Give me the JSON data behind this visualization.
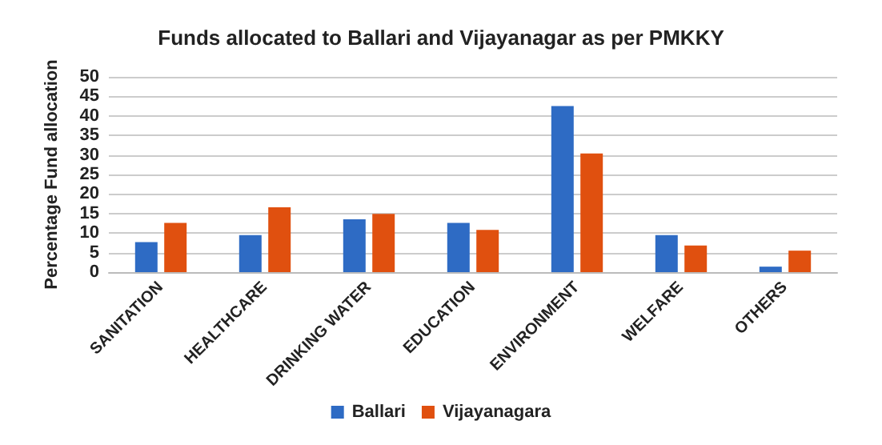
{
  "chart_data": {
    "type": "bar",
    "title": "Funds allocated to Ballari and Vijayanagar as per PMKKY",
    "ylabel": "Percentage Fund allocation",
    "categories": [
      "SANITATION",
      "HEALTHCARE",
      "DRINKING WATER",
      "EDUCATION",
      "ENVIRONMENT",
      "WELFARE",
      "OTHERS"
    ],
    "series": [
      {
        "name": "Ballari",
        "color": "#2e6bc4",
        "values": [
          7.7,
          9.5,
          13.5,
          12.6,
          42.5,
          9.5,
          1.4
        ]
      },
      {
        "name": "Vijayanagara",
        "color": "#e0500f",
        "values": [
          12.6,
          16.6,
          14.9,
          10.8,
          30.4,
          6.8,
          5.5
        ]
      }
    ],
    "ylim": [
      0,
      50
    ],
    "yticks": [
      0,
      5,
      10,
      15,
      20,
      25,
      30,
      35,
      40,
      45,
      50
    ],
    "grid": "y",
    "legend": "bottom"
  }
}
